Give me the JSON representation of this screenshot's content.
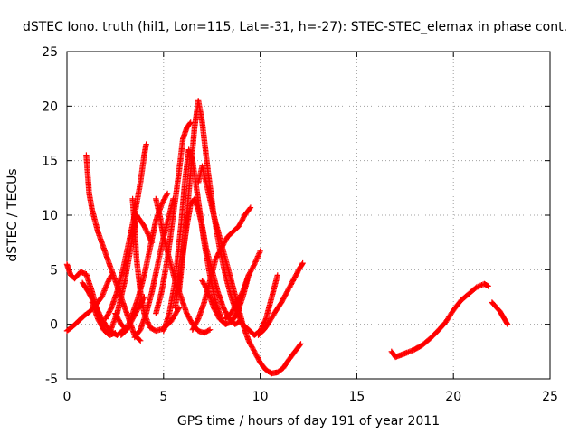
{
  "chart_data": {
    "type": "scatter",
    "title": "dSTEC Iono. truth (hil1, Lon=115, Lat=-31, h=-27): STEC-STEC_elemax in phase cont.",
    "xlabel": "GPS time / hours of day 191 of year 2011",
    "ylabel": "dSTEC  / TECUs",
    "xlim": [
      0,
      25
    ],
    "ylim": [
      -5,
      25
    ],
    "xticks": [
      0,
      5,
      10,
      15,
      20,
      25
    ],
    "yticks": [
      -5,
      0,
      5,
      10,
      15,
      20,
      25
    ],
    "grid": true,
    "marker": "plus",
    "color": "#ff0000",
    "series": [
      {
        "x": [
          0.0,
          0.2,
          0.4,
          0.7,
          1.0,
          1.3,
          1.6,
          1.9,
          2.2
        ],
        "y": [
          5.5,
          4.5,
          4.2,
          4.8,
          4.6,
          3.0,
          1.0,
          -0.5,
          -1.0
        ]
      },
      {
        "x": [
          0.0,
          0.3,
          0.6,
          0.9,
          1.2,
          1.5,
          1.8,
          2.1,
          2.3
        ],
        "y": [
          -0.6,
          -0.2,
          0.3,
          0.8,
          1.2,
          1.8,
          2.5,
          3.8,
          4.5
        ]
      },
      {
        "x": [
          1.0,
          1.15,
          1.3,
          1.6,
          2.0,
          2.4,
          2.8,
          3.2,
          3.5,
          3.8
        ],
        "y": [
          15.5,
          12.0,
          10.5,
          8.5,
          6.5,
          4.5,
          2.5,
          0.5,
          -1.0,
          -1.5
        ]
      },
      {
        "x": [
          0.8,
          1.1,
          1.4,
          1.8,
          2.2,
          2.6,
          3.0
        ],
        "y": [
          3.8,
          3.0,
          2.0,
          0.5,
          -0.6,
          -1.0,
          -0.4
        ]
      },
      {
        "x": [
          1.3,
          1.6,
          1.9,
          2.2,
          2.5
        ],
        "y": [
          2.0,
          0.5,
          -0.5,
          -1.0,
          -0.8
        ]
      },
      {
        "x": [
          2.2,
          2.6,
          3.0,
          3.3,
          3.6,
          4.0,
          4.4
        ],
        "y": [
          -0.8,
          1.0,
          4.0,
          7.0,
          10.0,
          9.0,
          7.5
        ]
      },
      {
        "x": [
          2.0,
          2.3,
          2.6,
          2.9,
          3.2,
          3.5,
          3.8,
          4.0,
          4.1
        ],
        "y": [
          0.5,
          1.5,
          3.0,
          5.0,
          7.5,
          10.0,
          13.0,
          15.5,
          16.5
        ]
      },
      {
        "x": [
          3.4,
          3.5,
          3.6,
          3.8,
          4.0,
          4.3,
          4.6,
          5.0,
          5.4,
          5.8
        ],
        "y": [
          11.5,
          9.0,
          6.0,
          3.0,
          1.0,
          -0.3,
          -0.6,
          -0.4,
          0.3,
          1.5
        ]
      },
      {
        "x": [
          2.5,
          2.8,
          3.1,
          3.4,
          3.7,
          4.0
        ],
        "y": [
          1.0,
          0.0,
          -0.5,
          0.5,
          1.5,
          2.5
        ]
      },
      {
        "x": [
          2.8,
          3.1,
          3.4,
          3.7,
          4.0,
          4.3,
          4.6,
          4.9,
          5.2
        ],
        "y": [
          -1.0,
          -0.5,
          1.0,
          2.5,
          4.5,
          7.0,
          9.5,
          11.0,
          12.0
        ]
      },
      {
        "x": [
          3.5,
          3.8,
          4.1,
          4.4,
          4.7,
          5.0,
          5.3,
          5.5
        ],
        "y": [
          -1.2,
          -0.5,
          1.0,
          3.0,
          5.5,
          8.0,
          10.0,
          11.5
        ]
      },
      {
        "x": [
          4.6,
          4.8,
          5.0,
          5.3,
          5.6,
          5.9,
          6.2,
          6.5,
          6.8,
          7.1,
          7.4
        ],
        "y": [
          11.5,
          10.0,
          8.0,
          6.0,
          4.0,
          2.5,
          1.0,
          0.0,
          -0.6,
          -0.8,
          -0.5
        ]
      },
      {
        "x": [
          4.6,
          4.9,
          5.2,
          5.5,
          5.8,
          6.0,
          6.2,
          6.4
        ],
        "y": [
          1.0,
          3.0,
          6.0,
          10.0,
          14.0,
          17.0,
          18.0,
          18.5
        ]
      },
      {
        "x": [
          5.0,
          5.3,
          5.6,
          5.9,
          6.1,
          6.3,
          6.5,
          6.7,
          6.9,
          7.1,
          7.4,
          7.7,
          8.0
        ],
        "y": [
          -0.6,
          1.0,
          4.0,
          9.0,
          13.0,
          16.0,
          15.0,
          12.5,
          10.0,
          7.5,
          4.5,
          2.0,
          0.5
        ]
      },
      {
        "x": [
          5.6,
          5.8,
          6.0,
          6.2,
          6.4,
          6.6,
          6.8,
          7.0,
          7.2,
          7.5,
          7.8,
          8.1,
          8.4,
          8.7,
          9.0
        ],
        "y": [
          1.5,
          4.0,
          6.5,
          9.0,
          11.0,
          11.5,
          10.5,
          9.0,
          7.0,
          5.0,
          3.0,
          1.5,
          0.5,
          0.0,
          0.3
        ]
      },
      {
        "x": [
          5.8,
          6.1,
          6.4,
          6.6,
          6.8,
          7.0,
          7.3,
          7.6,
          7.9,
          8.2,
          8.5,
          8.8,
          9.1,
          9.4,
          9.7,
          10.0,
          10.3,
          10.6,
          10.9
        ],
        "y": [
          3.0,
          8.0,
          14.0,
          18.0,
          20.5,
          18.5,
          14.0,
          10.0,
          7.0,
          4.5,
          2.5,
          1.0,
          0.0,
          -0.5,
          -1.0,
          -0.6,
          0.5,
          2.5,
          4.5
        ]
      },
      {
        "x": [
          7.0,
          7.3,
          7.6,
          7.9,
          8.2,
          8.5,
          8.8,
          9.1,
          9.4
        ],
        "y": [
          4.0,
          3.0,
          1.5,
          0.5,
          0.0,
          0.2,
          1.0,
          2.5,
          4.5
        ]
      },
      {
        "x": [
          6.5,
          6.8,
          7.1,
          7.4,
          7.7,
          8.0,
          8.3,
          8.6,
          8.9,
          9.2,
          9.5
        ],
        "y": [
          -0.5,
          0.5,
          2.0,
          4.0,
          6.0,
          7.0,
          8.0,
          8.5,
          9.0,
          10.0,
          10.7
        ]
      },
      {
        "x": [
          6.8,
          7.0,
          7.2,
          7.4,
          7.6,
          7.9,
          8.2,
          8.5,
          8.8,
          9.1,
          9.4,
          9.7,
          10.0,
          10.3,
          10.6,
          10.9,
          11.2,
          11.5,
          11.8,
          12.1
        ],
        "y": [
          13.0,
          14.5,
          13.0,
          11.5,
          10.0,
          8.0,
          6.0,
          4.0,
          2.0,
          0.0,
          -1.5,
          -2.5,
          -3.5,
          -4.2,
          -4.5,
          -4.4,
          -4.0,
          -3.2,
          -2.5,
          -1.8
        ]
      },
      {
        "x": [
          8.2,
          8.5,
          8.8,
          9.1,
          9.4,
          9.7,
          10.0
        ],
        "y": [
          0.5,
          1.0,
          2.0,
          3.0,
          4.5,
          5.5,
          6.7
        ]
      },
      {
        "x": [
          9.9,
          10.2,
          10.5,
          10.8,
          11.1,
          11.4,
          11.7,
          12.0,
          12.2
        ],
        "y": [
          -1.0,
          -0.5,
          0.3,
          1.2,
          2.0,
          3.0,
          4.0,
          5.0,
          5.6
        ]
      },
      {
        "x": [
          16.8,
          17.0,
          17.3,
          17.6,
          18.0,
          18.4,
          18.8,
          19.2,
          19.6,
          20.0,
          20.4,
          20.8,
          21.2,
          21.6,
          21.8
        ],
        "y": [
          -2.5,
          -3.0,
          -2.8,
          -2.6,
          -2.3,
          -1.9,
          -1.3,
          -0.6,
          0.2,
          1.3,
          2.2,
          2.8,
          3.4,
          3.7,
          3.5
        ]
      },
      {
        "x": [
          22.0,
          22.2,
          22.4,
          22.6,
          22.8
        ],
        "y": [
          2.0,
          1.6,
          1.2,
          0.6,
          0.0
        ]
      }
    ]
  }
}
